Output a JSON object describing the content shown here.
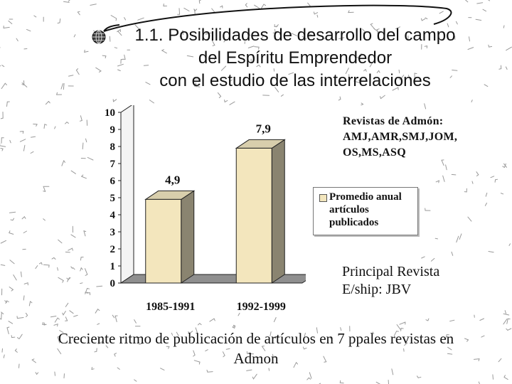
{
  "slide": {
    "title_lines": [
      "1.1. Posibilidades de desarrollo del campo",
      "del Espíritu Emprendedor",
      "con el estudio de las interrelaciones"
    ],
    "journals_lines": [
      "Revistas de Admón:",
      "AMJ,AMR,SMJ,JOM,",
      "OS,MS,ASQ"
    ],
    "principal_lines": [
      "Principal Revista",
      "E/ship: JBV"
    ],
    "footer_lines": [
      "Creciente ritmo de publicación de artículos en 7 ppales revistas en",
      "Admon"
    ],
    "icons": {
      "bullet": "globe-bullet-icon",
      "decoration": "ink-doodle-border"
    },
    "colors": {
      "bar_front": "#f3e6bd",
      "bar_side": "#8a8470",
      "floor": "#8f8f8f",
      "wall": "#ffffff",
      "ink": "#111111"
    }
  },
  "chart_data": {
    "type": "bar",
    "categories": [
      "1985-1991",
      "1992-1999"
    ],
    "series": [
      {
        "name": "Promedio anual artículos publicados",
        "values": [
          4.9,
          7.9
        ]
      }
    ],
    "data_labels": [
      "4,9",
      "7,9"
    ],
    "y_ticks": [
      "0",
      "1",
      "2",
      "3",
      "4",
      "5",
      "6",
      "7",
      "8",
      "9",
      "10"
    ],
    "ylim": [
      0,
      10
    ],
    "legend_lines": [
      "Promedio anual",
      "artículos",
      "publicados"
    ],
    "legend_position": "right",
    "grid": false,
    "style": "3d-column"
  }
}
